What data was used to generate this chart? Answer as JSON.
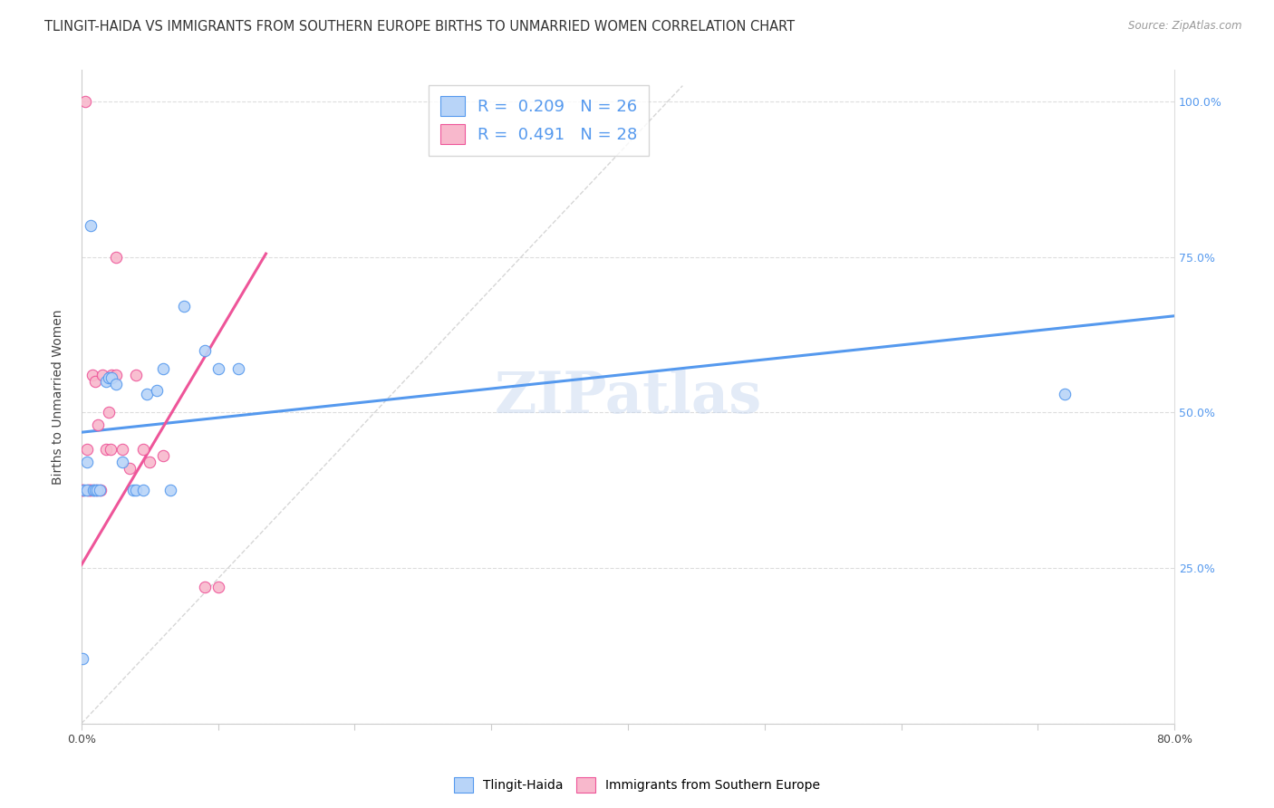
{
  "title": "TLINGIT-HAIDA VS IMMIGRANTS FROM SOUTHERN EUROPE BIRTHS TO UNMARRIED WOMEN CORRELATION CHART",
  "source": "Source: ZipAtlas.com",
  "ylabel": "Births to Unmarried Women",
  "xmin": 0.0,
  "xmax": 0.8,
  "ymin": 0.0,
  "ymax": 1.05,
  "xticks": [
    0.0,
    0.1,
    0.2,
    0.3,
    0.4,
    0.5,
    0.6,
    0.7,
    0.8
  ],
  "xticklabels": [
    "0.0%",
    "",
    "",
    "",
    "",
    "",
    "",
    "",
    "80.0%"
  ],
  "yticks": [
    0.0,
    0.25,
    0.5,
    0.75,
    1.0
  ],
  "yticklabels": [
    "",
    "25.0%",
    "50.0%",
    "75.0%",
    "100.0%"
  ],
  "blue_scatter_x": [
    0.001,
    0.002,
    0.004,
    0.004,
    0.007,
    0.009,
    0.01,
    0.011,
    0.013,
    0.018,
    0.02,
    0.022,
    0.025,
    0.03,
    0.038,
    0.04,
    0.045,
    0.048,
    0.055,
    0.06,
    0.065,
    0.075,
    0.09,
    0.1,
    0.115,
    0.72
  ],
  "blue_scatter_y": [
    0.105,
    0.375,
    0.375,
    0.42,
    0.8,
    0.375,
    0.375,
    0.375,
    0.375,
    0.55,
    0.555,
    0.555,
    0.545,
    0.42,
    0.375,
    0.375,
    0.375,
    0.53,
    0.535,
    0.57,
    0.375,
    0.67,
    0.6,
    0.57,
    0.57,
    0.53
  ],
  "pink_scatter_x": [
    0.001,
    0.001,
    0.003,
    0.004,
    0.005,
    0.006,
    0.007,
    0.008,
    0.009,
    0.01,
    0.011,
    0.012,
    0.014,
    0.015,
    0.018,
    0.02,
    0.021,
    0.022,
    0.025,
    0.025,
    0.03,
    0.035,
    0.04,
    0.045,
    0.05,
    0.06,
    0.09,
    0.1
  ],
  "pink_scatter_y": [
    0.375,
    0.375,
    1.0,
    0.44,
    0.375,
    0.375,
    0.375,
    0.56,
    0.375,
    0.55,
    0.375,
    0.48,
    0.375,
    0.56,
    0.44,
    0.5,
    0.44,
    0.56,
    0.56,
    0.75,
    0.44,
    0.41,
    0.56,
    0.44,
    0.42,
    0.43,
    0.22,
    0.22
  ],
  "blue_line_x": [
    0.0,
    0.8
  ],
  "blue_line_y": [
    0.468,
    0.655
  ],
  "pink_line_x": [
    0.0,
    0.135
  ],
  "pink_line_y": [
    0.255,
    0.755
  ],
  "diagonal_line_x": [
    0.0,
    0.44
  ],
  "diagonal_line_y": [
    0.0,
    1.025
  ],
  "blue_color": "#b8d4f8",
  "pink_color": "#f8b8cc",
  "blue_line_color": "#5599ee",
  "pink_line_color": "#ee5599",
  "diagonal_color": "#cccccc",
  "watermark_text": "ZIPatlas",
  "scatter_size": 80,
  "title_fontsize": 10.5,
  "axis_label_fontsize": 10,
  "tick_fontsize": 9,
  "legend_fontsize": 13
}
